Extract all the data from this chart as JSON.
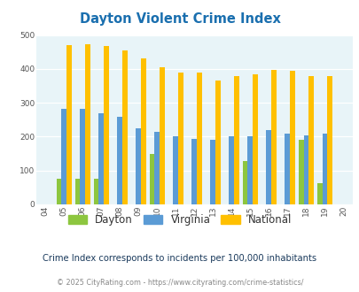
{
  "years": [
    "04",
    "05",
    "06",
    "07",
    "08",
    "09",
    "10",
    "11",
    "12",
    "13",
    "14",
    "15",
    "16",
    "17",
    "18",
    "19",
    "20"
  ],
  "dayton": [
    0,
    75,
    75,
    75,
    0,
    0,
    148,
    0,
    0,
    0,
    0,
    128,
    0,
    0,
    190,
    63,
    0
  ],
  "virginia": [
    0,
    283,
    283,
    270,
    258,
    225,
    213,
    200,
    193,
    190,
    200,
    200,
    220,
    210,
    203,
    210,
    0
  ],
  "national": [
    0,
    469,
    473,
    467,
    454,
    431,
    406,
    388,
    388,
    367,
    378,
    383,
    398,
    394,
    380,
    380,
    0
  ],
  "title": "Dayton Violent Crime Index",
  "title_color": "#1a6faf",
  "dayton_color": "#8dc63f",
  "virginia_color": "#5b9bd5",
  "national_color": "#ffc000",
  "bg_color": "#e8f4f8",
  "ylabel_ticks": [
    0,
    100,
    200,
    300,
    400,
    500
  ],
  "ylim": [
    0,
    500
  ],
  "subtitle": "Crime Index corresponds to incidents per 100,000 inhabitants",
  "footer": "© 2025 CityRating.com - https://www.cityrating.com/crime-statistics/",
  "legend_labels": [
    "Dayton",
    "Virginia",
    "National"
  ],
  "bar_width": 0.27
}
